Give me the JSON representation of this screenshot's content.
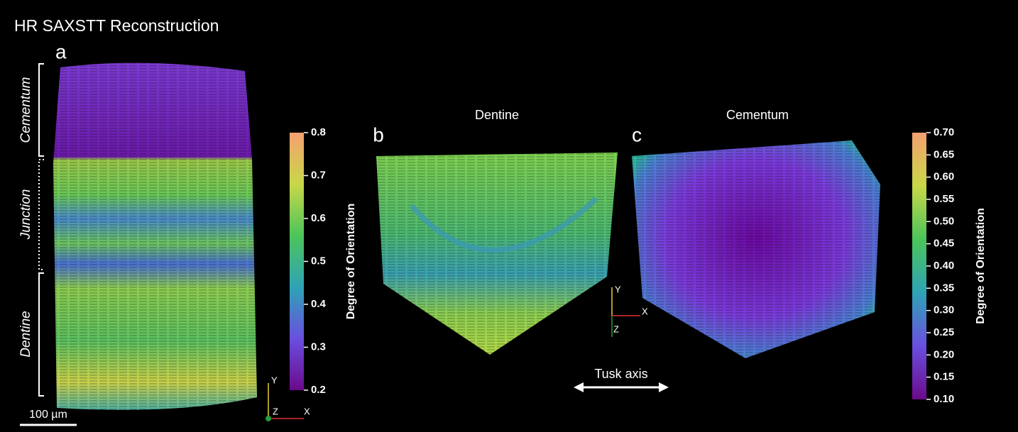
{
  "title": "HR SAXSTT Reconstruction",
  "panel_a": {
    "label": "a",
    "regions": [
      "Cementum",
      "Junction",
      "Dentine"
    ],
    "scale_bar": "100 µm",
    "axes": [
      "Y",
      "Z",
      "X"
    ]
  },
  "panel_b": {
    "label": "b",
    "title": "Dentine"
  },
  "panel_c": {
    "label": "c",
    "title": "Cementum"
  },
  "axes_bc": [
    "Y",
    "X",
    "Z"
  ],
  "tusk_axis": "Tusk axis",
  "colorbars": [
    {
      "label": "Degree of Orientation",
      "lim": [
        0.2,
        0.8
      ],
      "ticks": [
        0.2,
        0.3,
        0.4,
        0.5,
        0.6,
        0.7,
        0.8
      ]
    },
    {
      "label": "Degree of Orientation",
      "lim": [
        0.1,
        0.7
      ],
      "ticks": [
        {
          "value": 0.1,
          "label": "0.10"
        },
        0.15,
        {
          "value": 0.2,
          "label": "0.20"
        },
        0.25,
        {
          "value": 0.3,
          "label": "0.30"
        },
        0.35,
        {
          "value": 0.4,
          "label": "0.40"
        },
        0.45,
        {
          "value": 0.5,
          "label": "0.50"
        },
        0.55,
        {
          "value": 0.6,
          "label": "0.60"
        },
        0.65,
        {
          "value": 0.7,
          "label": "0.70"
        }
      ]
    }
  ]
}
